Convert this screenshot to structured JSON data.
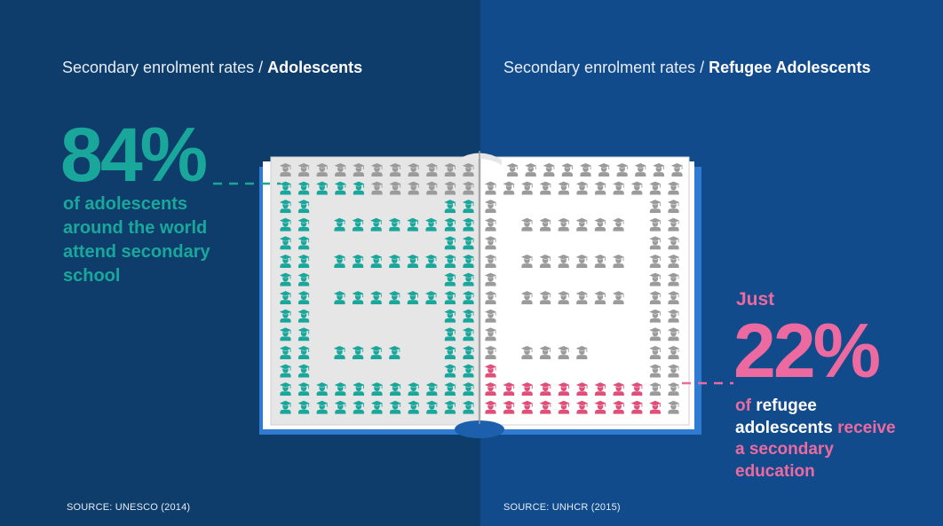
{
  "left": {
    "heading_prefix": "Secondary enrolment rates / ",
    "heading_bold": "Adolescents",
    "stat": "84%",
    "description": "of adolescents around the world attend secondary school",
    "description_lines": [
      "of adolescents",
      "around the world",
      "attend secondary",
      "school"
    ],
    "source": "SOURCE: UNESCO (2014)",
    "highlight_color": "#1aa79b",
    "percent": 84
  },
  "right": {
    "heading_prefix": "Secondary enrolment rates / ",
    "heading_bold": "Refugee Adolescents",
    "pre_stat": "Just",
    "stat": "22%",
    "desc_line1_a": "of ",
    "desc_line1_b": "refugee",
    "desc_line2_a": "adolescents",
    "desc_line2_b": " receive",
    "desc_line3": "a secondary",
    "desc_line4": "education",
    "source": "SOURCE: UNHCR (2015)",
    "highlight_color": "#e04e7a",
    "percent": 22
  },
  "colors": {
    "left_background": "#0f3d6b",
    "right_background": "#124b8c",
    "teal": "#1aa79b",
    "pink": "#ec6aa0",
    "grey_figure": "#9b9b9b",
    "page": "#e6e6e6",
    "book_cover": "#2f7bd1"
  },
  "icons": {
    "figure": "graduate-student-icon",
    "object": "open-book"
  }
}
